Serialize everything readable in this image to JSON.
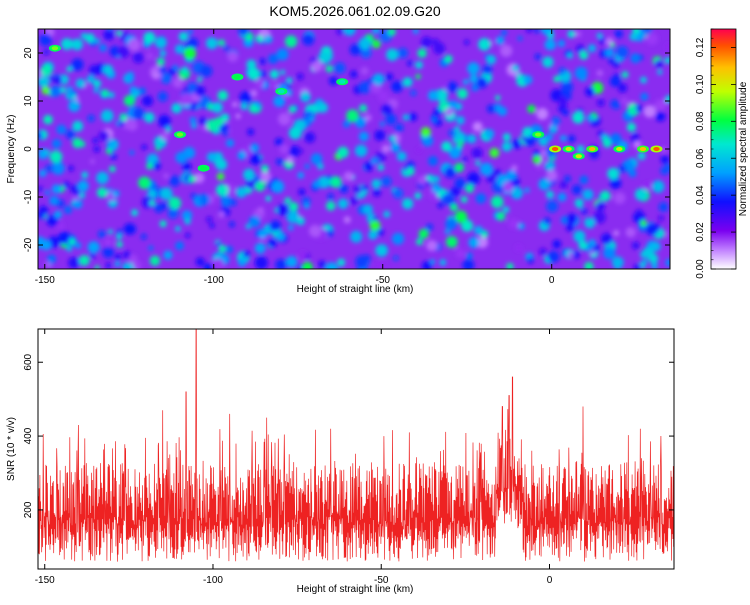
{
  "title": "KOM5.2026.061.02.09.G20",
  "chart_data": [
    {
      "type": "heatmap",
      "xlabel": "Height of straight line (km)",
      "ylabel": "Frequency (Hz)",
      "xlim": [
        -152,
        35
      ],
      "ylim": [
        -25,
        25
      ],
      "xticks": [
        -150,
        -100,
        -50,
        0
      ],
      "yticks": [
        -20,
        -10,
        0,
        10,
        20
      ],
      "colorbar": {
        "label": "Normalized spectral amplitude",
        "range": [
          0,
          0.13
        ],
        "ticks": [
          0.0,
          0.02,
          0.04,
          0.06,
          0.08,
          0.1,
          0.12
        ],
        "tick_labels": [
          "0.00",
          "0.02",
          "0.04",
          "0.06",
          "0.08",
          "0.10",
          "0.12"
        ]
      },
      "features": [
        {
          "x": 1,
          "y": 0,
          "value": 0.12
        },
        {
          "x": 12,
          "y": 0,
          "value": 0.11
        },
        {
          "x": 20,
          "y": 0,
          "value": 0.1
        },
        {
          "x": 27,
          "y": 0,
          "value": 0.11
        },
        {
          "x": 31,
          "y": 0,
          "value": 0.12
        },
        {
          "x": 5,
          "y": 0,
          "value": 0.1
        },
        {
          "x": -4,
          "y": 3,
          "value": 0.09
        },
        {
          "x": 8,
          "y": -1.5,
          "value": 0.1
        },
        {
          "x": -147,
          "y": 21,
          "value": 0.09
        },
        {
          "x": -110,
          "y": 3,
          "value": 0.09
        },
        {
          "x": -103,
          "y": -4,
          "value": 0.08
        },
        {
          "x": -93,
          "y": 15,
          "value": 0.08
        },
        {
          "x": -80,
          "y": 12,
          "value": 0.07
        },
        {
          "x": -62,
          "y": 14,
          "value": 0.07
        }
      ]
    },
    {
      "type": "line",
      "xlabel": "Height of straight line (km)",
      "ylabel": "SNR (10 * v/v)",
      "xlim": [
        -152,
        37
      ],
      "ylim": [
        40,
        690
      ],
      "xticks": [
        -150,
        -100,
        -50,
        0
      ],
      "yticks": [
        200,
        400,
        600
      ],
      "series": [
        {
          "name": "SNR",
          "color": "#ee2222",
          "baseline": 150,
          "noise_range": [
            60,
            330
          ],
          "peaks": [
            {
              "x": -105,
              "y": 690
            },
            {
              "x": -108,
              "y": 520
            },
            {
              "x": -115,
              "y": 470
            },
            {
              "x": -95,
              "y": 460
            },
            {
              "x": -84,
              "y": 450
            },
            {
              "x": -65,
              "y": 420
            },
            {
              "x": -11,
              "y": 560
            },
            {
              "x": -12,
              "y": 510
            },
            {
              "x": -14,
              "y": 480
            },
            {
              "x": 10,
              "y": 480
            },
            {
              "x": -140,
              "y": 430
            },
            {
              "x": 27,
              "y": 420
            }
          ]
        }
      ]
    }
  ]
}
